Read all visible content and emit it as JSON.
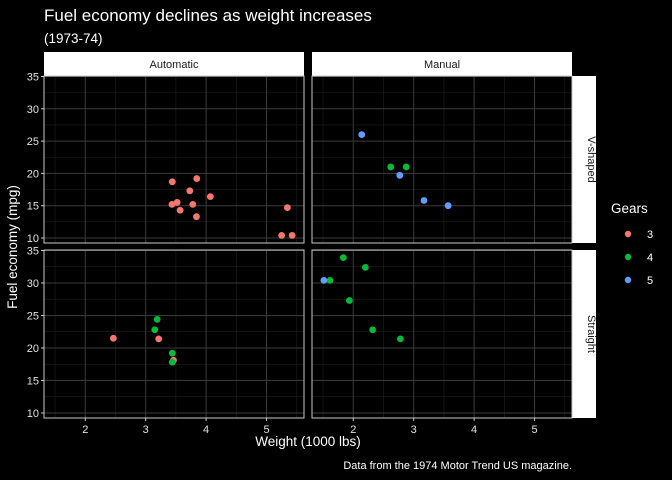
{
  "chart_data": {
    "type": "scatter",
    "title": "Fuel economy declines as weight increases",
    "subtitle": "(1973-74)",
    "caption": "Data from the 1974 Motor Trend US magazine.",
    "xlabel": "Weight (1000 lbs)",
    "ylabel": "Fuel economy (mpg)",
    "xlim": [
      1.317,
      5.62
    ],
    "ylim": [
      9.225,
      35.075
    ],
    "x_ticks": [
      2,
      3,
      4,
      5
    ],
    "y_ticks": [
      10,
      15,
      20,
      25,
      30,
      35
    ],
    "grid": true,
    "facet_cols": [
      "Automatic",
      "Manual"
    ],
    "facet_rows": [
      "V-shaped",
      "Straight"
    ],
    "legend": {
      "title": "Gears",
      "position": "right",
      "entries": [
        {
          "label": "3",
          "color": "#F8766D"
        },
        {
          "label": "4",
          "color": "#00BA38"
        },
        {
          "label": "5",
          "color": "#619CFF"
        }
      ]
    },
    "panels": [
      {
        "col": "Automatic",
        "row": "V-shaped",
        "points": [
          {
            "x": 3.44,
            "y": 18.7,
            "gear": "3"
          },
          {
            "x": 3.57,
            "y": 14.3,
            "gear": "3"
          },
          {
            "x": 4.07,
            "y": 16.4,
            "gear": "3"
          },
          {
            "x": 3.73,
            "y": 17.3,
            "gear": "3"
          },
          {
            "x": 3.78,
            "y": 15.2,
            "gear": "3"
          },
          {
            "x": 5.25,
            "y": 10.4,
            "gear": "3"
          },
          {
            "x": 5.424,
            "y": 10.4,
            "gear": "3"
          },
          {
            "x": 5.345,
            "y": 14.7,
            "gear": "3"
          },
          {
            "x": 3.52,
            "y": 15.5,
            "gear": "3"
          },
          {
            "x": 3.435,
            "y": 15.2,
            "gear": "3"
          },
          {
            "x": 3.84,
            "y": 13.3,
            "gear": "3"
          },
          {
            "x": 3.845,
            "y": 19.2,
            "gear": "3"
          }
        ]
      },
      {
        "col": "Manual",
        "row": "V-shaped",
        "points": [
          {
            "x": 2.62,
            "y": 21.0,
            "gear": "4"
          },
          {
            "x": 2.875,
            "y": 21.0,
            "gear": "4"
          },
          {
            "x": 2.14,
            "y": 26.0,
            "gear": "5"
          },
          {
            "x": 3.17,
            "y": 15.8,
            "gear": "5"
          },
          {
            "x": 2.77,
            "y": 19.7,
            "gear": "5"
          },
          {
            "x": 3.57,
            "y": 15.0,
            "gear": "5"
          }
        ]
      },
      {
        "col": "Automatic",
        "row": "Straight",
        "points": [
          {
            "x": 3.215,
            "y": 21.4,
            "gear": "3"
          },
          {
            "x": 3.46,
            "y": 18.1,
            "gear": "3"
          },
          {
            "x": 2.465,
            "y": 21.5,
            "gear": "3"
          },
          {
            "x": 3.19,
            "y": 24.4,
            "gear": "4"
          },
          {
            "x": 3.15,
            "y": 22.8,
            "gear": "4"
          },
          {
            "x": 3.44,
            "y": 19.2,
            "gear": "4"
          },
          {
            "x": 3.44,
            "y": 17.8,
            "gear": "4"
          }
        ]
      },
      {
        "col": "Manual",
        "row": "Straight",
        "points": [
          {
            "x": 2.32,
            "y": 22.8,
            "gear": "4"
          },
          {
            "x": 2.2,
            "y": 32.4,
            "gear": "4"
          },
          {
            "x": 1.615,
            "y": 30.4,
            "gear": "4"
          },
          {
            "x": 1.835,
            "y": 33.9,
            "gear": "4"
          },
          {
            "x": 1.935,
            "y": 27.3,
            "gear": "4"
          },
          {
            "x": 2.78,
            "y": 21.4,
            "gear": "4"
          },
          {
            "x": 1.513,
            "y": 30.4,
            "gear": "5"
          }
        ]
      }
    ]
  },
  "colors": {
    "background": "#000000",
    "strip_fill": "#ffffff",
    "panel_border": "#c8c8c8",
    "grid_major": "#3a3a3a",
    "grid_minor": "#1e1e1e"
  }
}
